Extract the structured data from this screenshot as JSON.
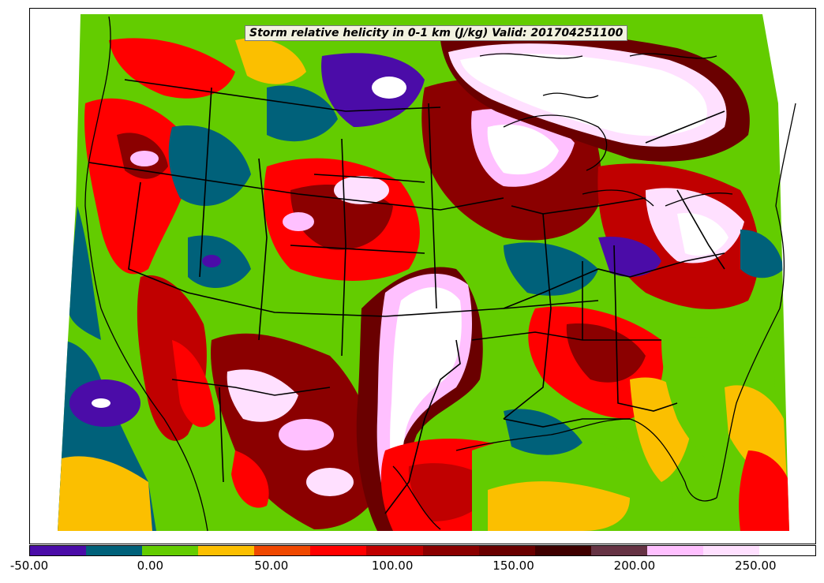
{
  "title": "Storm relative helicity in 0-1 km (J/kg) Valid: 201704251100",
  "colorbar": {
    "colors": [
      "#4b0ca8",
      "#00617a",
      "#63cc00",
      "#fbbf00",
      "#f04800",
      "#ff0000",
      "#c00000",
      "#8b0000",
      "#6a0000",
      "#3f0000",
      "#663344",
      "#ffc0ff",
      "#ffe0ff",
      "#ffffff"
    ],
    "tick_labels": [
      "-50.00",
      "0.00",
      "50.00",
      "100.00",
      "150.00",
      "200.00",
      "250.00"
    ],
    "tick_values": [
      -50,
      0,
      50,
      100,
      150,
      200,
      250
    ],
    "range": [
      -50,
      275
    ]
  },
  "map": {
    "field": "Storm relative helicity in 0-1 km",
    "units": "J/kg",
    "valid": "201704251100"
  }
}
